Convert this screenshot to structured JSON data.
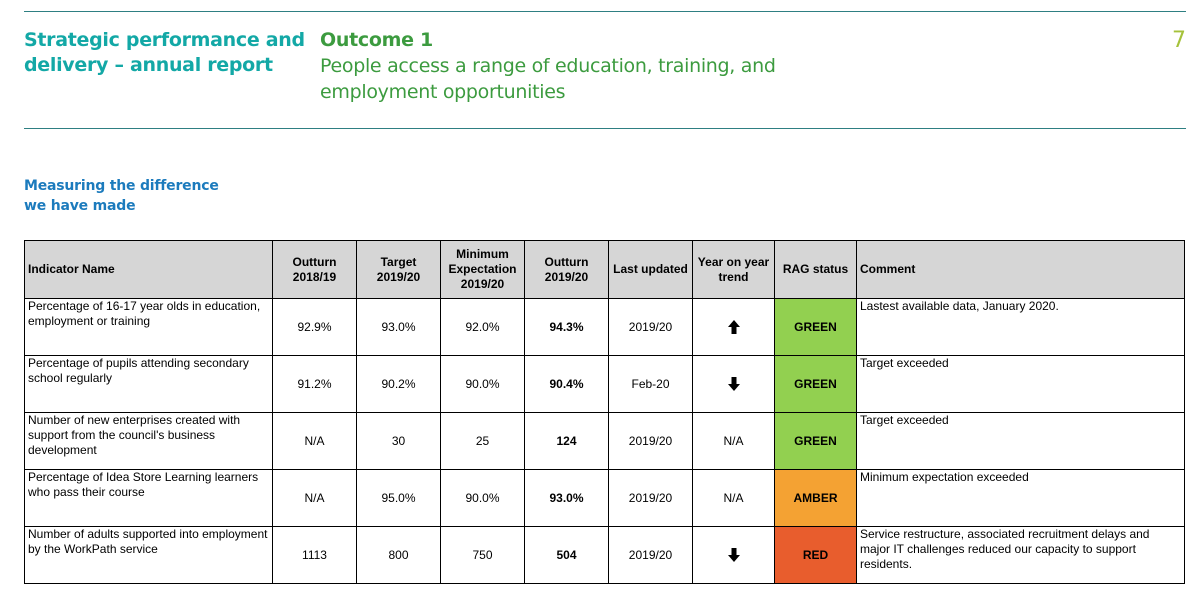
{
  "header": {
    "report_title": "Strategic performance and delivery – annual report",
    "outcome_label": "Outcome 1",
    "outcome_description": "People access a range of education, training, and employment opportunities",
    "page_number": "7"
  },
  "section": {
    "heading": "Measuring the difference we have made"
  },
  "table": {
    "columns": {
      "indicator": "Indicator Name",
      "outturn_prev": "Outturn 2018/19",
      "target": "Target 2019/20",
      "minimum": "Minimum Expectation 2019/20",
      "outturn_curr": "Outturn 2019/20",
      "last_updated": "Last updated",
      "trend": "Year on year trend",
      "rag": "RAG status",
      "comment": "Comment"
    },
    "rows": [
      {
        "indicator": "Percentage of 16-17 year olds in education, employment or training",
        "outturn_prev": "92.9%",
        "target": "93.0%",
        "minimum": "92.0%",
        "outturn_curr": "94.3%",
        "last_updated": "2019/20",
        "trend": "up-arrow-icon",
        "trend_text": "",
        "rag": "GREEN",
        "rag_color": "#92d050",
        "comment": "Lastest available data, January 2020."
      },
      {
        "indicator": "Percentage of pupils attending secondary school regularly",
        "outturn_prev": "91.2%",
        "target": "90.2%",
        "minimum": "90.0%",
        "outturn_curr": "90.4%",
        "last_updated": "Feb-20",
        "trend": "down-arrow-icon",
        "trend_text": "",
        "rag": "GREEN",
        "rag_color": "#92d050",
        "comment": "Target exceeded"
      },
      {
        "indicator": "Number of new enterprises created with support from the council's business development",
        "outturn_prev": "N/A",
        "target": "30",
        "minimum": "25",
        "outturn_curr": "124",
        "last_updated": "2019/20",
        "trend": "",
        "trend_text": "N/A",
        "rag": "GREEN",
        "rag_color": "#92d050",
        "comment": "Target exceeded"
      },
      {
        "indicator": "Percentage of Idea Store Learning learners who pass their course",
        "outturn_prev": "N/A",
        "target": "95.0%",
        "minimum": "90.0%",
        "outturn_curr": "93.0%",
        "last_updated": "2019/20",
        "trend": "",
        "trend_text": "N/A",
        "rag": "AMBER",
        "rag_color": "#f4a233",
        "comment": "Minimum expectation exceeded"
      },
      {
        "indicator": "Number of adults supported into employment by the WorkPath service",
        "outturn_prev": "1113",
        "target": "800",
        "minimum": "750",
        "outturn_curr": "504",
        "last_updated": "2019/20",
        "trend": "down-arrow-icon",
        "trend_text": "",
        "rag": "RED",
        "rag_color": "#e85d2d",
        "comment": "Service restructure, associated recruitment delays and major IT challenges reduced our capacity to support residents."
      }
    ]
  },
  "colors": {
    "teal": "#13a8a6",
    "green_title": "#3c9b3f",
    "page_number": "#a5c23a",
    "section_blue": "#1c7bbd",
    "rule": "#2e7f82",
    "header_fill": "#d6d6d6"
  }
}
